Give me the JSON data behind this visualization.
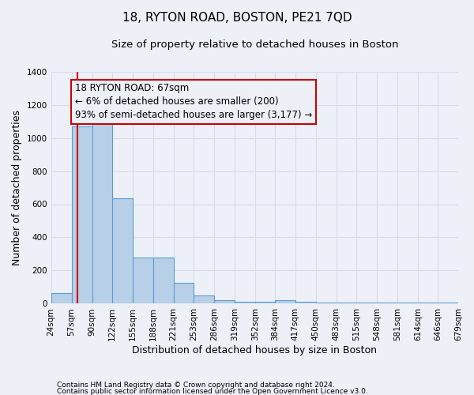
{
  "title": "18, RYTON ROAD, BOSTON, PE21 7QD",
  "subtitle": "Size of property relative to detached houses in Boston",
  "xlabel": "Distribution of detached houses by size in Boston",
  "ylabel": "Number of detached properties",
  "footer_line1": "Contains HM Land Registry data © Crown copyright and database right 2024.",
  "footer_line2": "Contains public sector information licensed under the Open Government Licence v3.0.",
  "bin_edges": [
    24,
    57,
    90,
    122,
    155,
    188,
    221,
    253,
    286,
    319,
    352,
    384,
    417,
    450,
    483,
    515,
    548,
    581,
    614,
    646,
    679
  ],
  "bar_heights": [
    65,
    1070,
    1150,
    635,
    280,
    280,
    125,
    48,
    20,
    10,
    10,
    20,
    10,
    5,
    5,
    5,
    5,
    5,
    5,
    5
  ],
  "bar_color": "#b8cfe8",
  "bar_edge_color": "#5b9bd5",
  "property_size": 67,
  "red_line_color": "#cc0000",
  "annotation_line1": "18 RYTON ROAD: 67sqm",
  "annotation_line2": "← 6% of detached houses are smaller (200)",
  "annotation_line3": "93% of semi-detached houses are larger (3,177) →",
  "annotation_box_color": "#cc0000",
  "ylim": [
    0,
    1400
  ],
  "yticks": [
    0,
    200,
    400,
    600,
    800,
    1000,
    1200,
    1400
  ],
  "background_color": "#eef0f8",
  "grid_color": "#d8dce8",
  "title_fontsize": 11,
  "subtitle_fontsize": 9.5,
  "axis_label_fontsize": 9,
  "tick_label_fontsize": 7.5,
  "annotation_fontsize": 8.5,
  "footer_fontsize": 6.5
}
